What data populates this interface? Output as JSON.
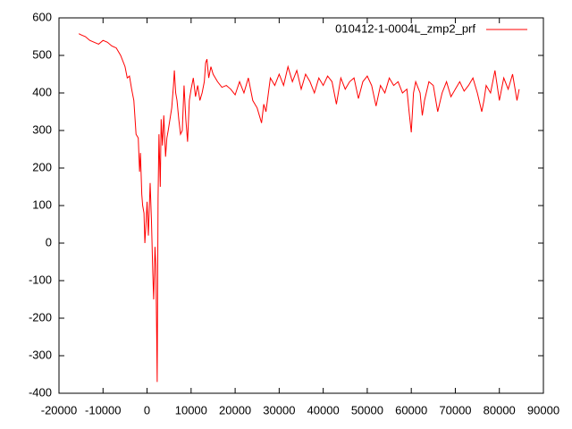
{
  "chart_data": {
    "type": "line",
    "x": [
      -15500,
      -15000,
      -14000,
      -13000,
      -12000,
      -11000,
      -10000,
      -9000,
      -8000,
      -7000,
      -6000,
      -5000,
      -4500,
      -4000,
      -3500,
      -3000,
      -2500,
      -2000,
      -1700,
      -1500,
      -1200,
      -1000,
      -700,
      -500,
      -200,
      0,
      300,
      700,
      1000,
      1300,
      1500,
      1800,
      2000,
      2200,
      2300,
      2500,
      2700,
      3000,
      3200,
      3500,
      3800,
      4200,
      4500,
      4800,
      5200,
      5600,
      6000,
      6200,
      6500,
      6800,
      7200,
      7600,
      8000,
      8400,
      8800,
      9200,
      9600,
      10000,
      10500,
      11000,
      11500,
      12000,
      12500,
      13000,
      13300,
      13600,
      14000,
      14500,
      15000,
      16000,
      17000,
      18000,
      19000,
      20000,
      21000,
      22000,
      23000,
      24000,
      25000,
      25500,
      26000,
      26500,
      27000,
      28000,
      29000,
      30000,
      31000,
      32000,
      33000,
      34000,
      35000,
      36000,
      37000,
      38000,
      39000,
      40000,
      41000,
      42000,
      43000,
      44000,
      45000,
      46000,
      47000,
      48000,
      49000,
      50000,
      51000,
      52000,
      53000,
      54000,
      55000,
      56000,
      57000,
      58000,
      59000,
      59500,
      60000,
      60500,
      61000,
      62000,
      62500,
      63000,
      64000,
      65000,
      66000,
      67000,
      68000,
      69000,
      70000,
      71000,
      72000,
      73000,
      74000,
      75000,
      76000,
      76500,
      77000,
      78000,
      79000,
      80000,
      81000,
      82000,
      83000,
      84000,
      84500
    ],
    "series": [
      {
        "name": "010412-1-0004L_zmp2_prf",
        "color": "#ff0000",
        "values": [
          558,
          555,
          550,
          540,
          535,
          530,
          540,
          535,
          525,
          520,
          500,
          470,
          440,
          445,
          410,
          380,
          290,
          280,
          190,
          240,
          130,
          100,
          80,
          0,
          60,
          110,
          20,
          160,
          60,
          -80,
          -150,
          -10,
          -60,
          -260,
          -370,
          120,
          290,
          150,
          330,
          260,
          340,
          230,
          280,
          300,
          330,
          360,
          420,
          460,
          400,
          380,
          330,
          290,
          300,
          420,
          330,
          270,
          380,
          410,
          440,
          390,
          420,
          380,
          400,
          430,
          480,
          490,
          440,
          470,
          450,
          430,
          415,
          420,
          410,
          395,
          430,
          400,
          440,
          380,
          360,
          340,
          320,
          370,
          350,
          440,
          420,
          450,
          420,
          470,
          430,
          460,
          410,
          450,
          430,
          400,
          440,
          420,
          445,
          430,
          370,
          440,
          410,
          430,
          440,
          385,
          430,
          445,
          420,
          365,
          420,
          400,
          440,
          420,
          430,
          400,
          410,
          350,
          295,
          400,
          430,
          400,
          340,
          380,
          430,
          420,
          350,
          400,
          430,
          390,
          410,
          430,
          405,
          420,
          440,
          400,
          350,
          380,
          420,
          400,
          460,
          380,
          440,
          410,
          450,
          380,
          410
        ]
      }
    ],
    "xlim": [
      -20000,
      90000
    ],
    "xticks": [
      -20000,
      -10000,
      0,
      10000,
      20000,
      30000,
      40000,
      50000,
      60000,
      70000,
      80000,
      90000
    ],
    "ylim": [
      -400,
      600
    ],
    "yticks": [
      -400,
      -300,
      -200,
      -100,
      0,
      100,
      200,
      300,
      400,
      500,
      600
    ],
    "legend": "top-right"
  }
}
